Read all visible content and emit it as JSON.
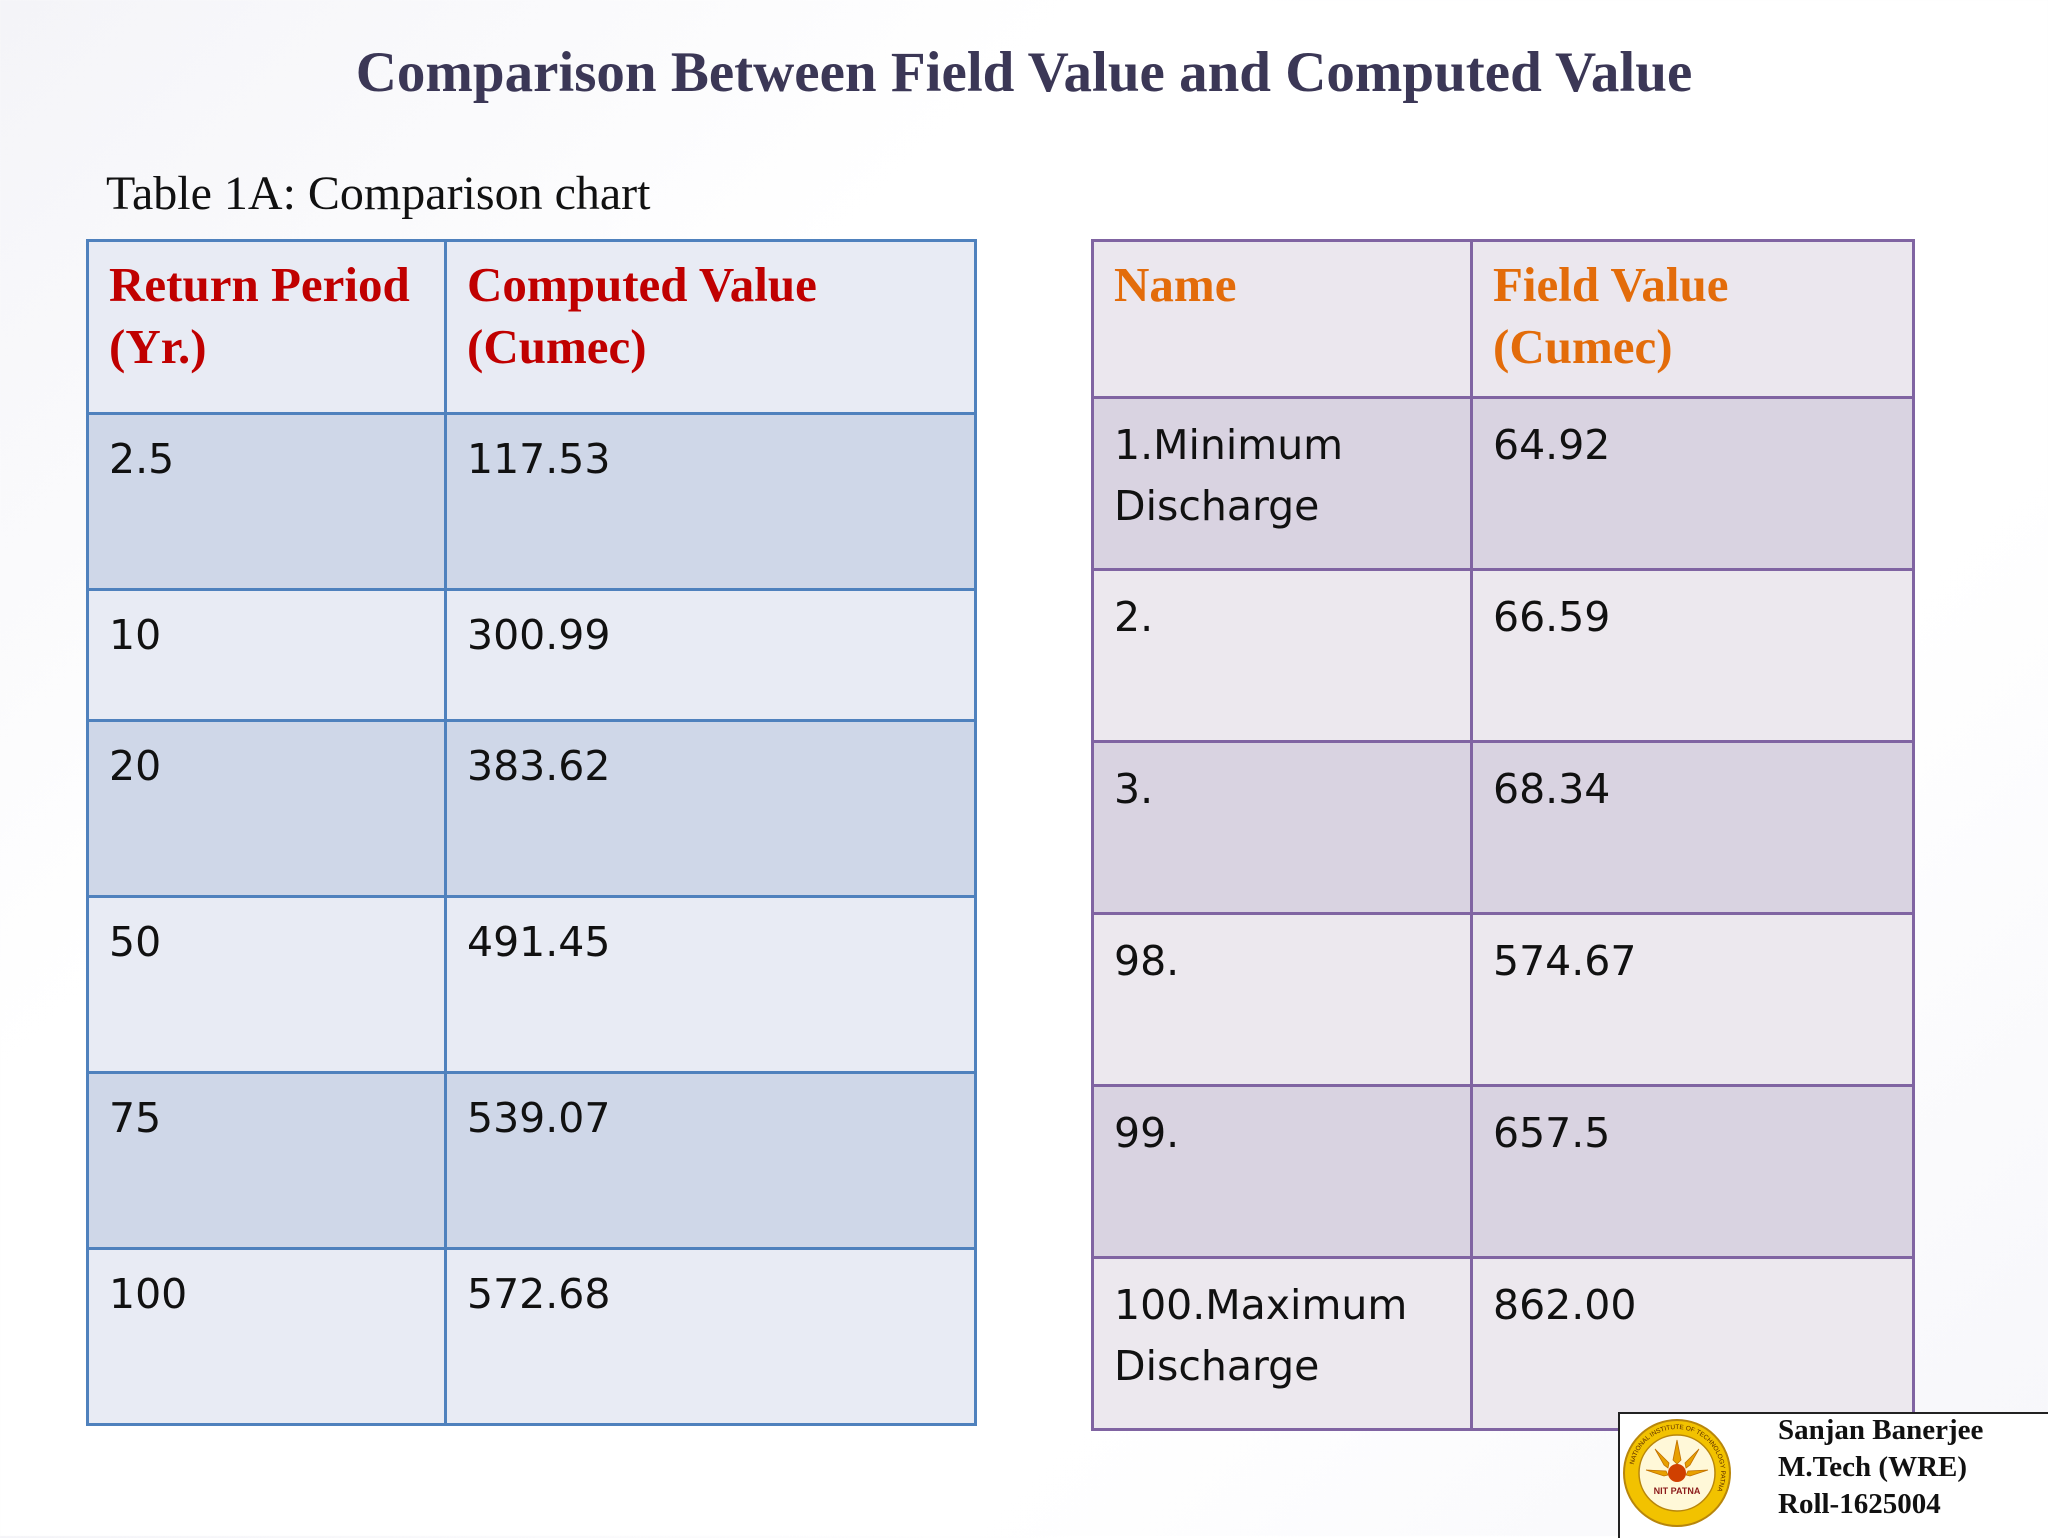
{
  "title": "Comparison Between Field Value and Computed Value",
  "caption": "Table 1A: Comparison chart",
  "left_table": {
    "headers": [
      "Return Period (Yr.)",
      "Computed Value (Cumec)"
    ],
    "rows": [
      [
        "2.5",
        "117.53"
      ],
      [
        "10",
        "300.99"
      ],
      [
        "20",
        "383.62"
      ],
      [
        "50",
        "491.45"
      ],
      [
        "75",
        "539.07"
      ],
      [
        "100",
        "572.68"
      ]
    ]
  },
  "right_table": {
    "headers": [
      "Name",
      "Field Value (Cumec)"
    ],
    "rows": [
      [
        "1.Minimum Discharge",
        "64.92"
      ],
      [
        "2.",
        "66.59"
      ],
      [
        "3.",
        "68.34"
      ],
      [
        "98.",
        "574.67"
      ],
      [
        "99.",
        "657.5"
      ],
      [
        "100.Maximum Discharge",
        "862.00"
      ]
    ]
  },
  "author": {
    "name": "Sanjan Banerjee",
    "degree": "M.Tech (WRE)",
    "roll": "Roll-1625004"
  },
  "logo": {
    "icon": "nit-patna-logo-icon",
    "text": "NIT PATNA",
    "ring_text": "NATIONAL INSTITUTE OF TECHNOLOGY PATNA"
  },
  "colors": {
    "title": "#3b3756",
    "left_header_text": "#c00000",
    "left_border": "#4f81bd",
    "right_header_text": "#e36c0a",
    "right_border": "#8064a2"
  }
}
